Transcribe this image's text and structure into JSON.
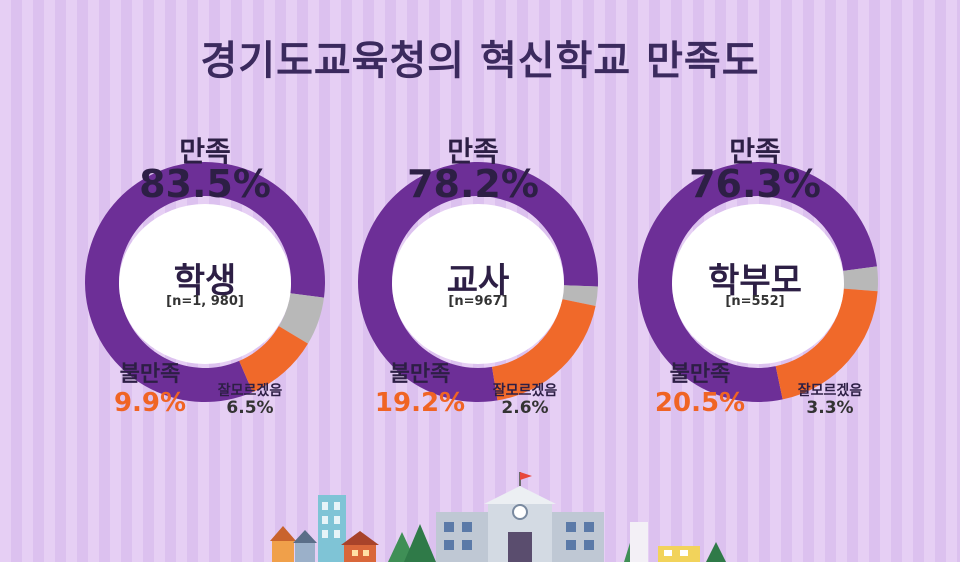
{
  "title": "경기도교육청의 혁신학교 만족도",
  "colors": {
    "satisfied": "#6d2f97",
    "dissatisfied": "#f0692a",
    "unknown": "#b8b8b8",
    "text": "#2d1f45"
  },
  "legend_labels": {
    "satisfied": "만족",
    "dissatisfied": "불만족",
    "unknown": "잘모르겠음"
  },
  "chart_data": [
    {
      "type": "pie",
      "title": "학생",
      "n_label": "[n=1, 980]",
      "categories": [
        "만족",
        "불만족",
        "잘모르겠음"
      ],
      "values": [
        83.5,
        9.9,
        6.5
      ],
      "value_labels": [
        "83.5%",
        "9.9%",
        "6.5%"
      ]
    },
    {
      "type": "pie",
      "title": "교사",
      "n_label": "[n=967]",
      "categories": [
        "만족",
        "불만족",
        "잘모르겠음"
      ],
      "values": [
        78.2,
        19.2,
        2.6
      ],
      "value_labels": [
        "78.2%",
        "19.2%",
        "2.6%"
      ]
    },
    {
      "type": "pie",
      "title": "학부모",
      "n_label": "[n=552]",
      "categories": [
        "만족",
        "불만족",
        "잘모르겠음"
      ],
      "values": [
        76.3,
        20.5,
        3.3
      ],
      "value_labels": [
        "76.3%",
        "20.5%",
        "3.3%"
      ]
    }
  ]
}
